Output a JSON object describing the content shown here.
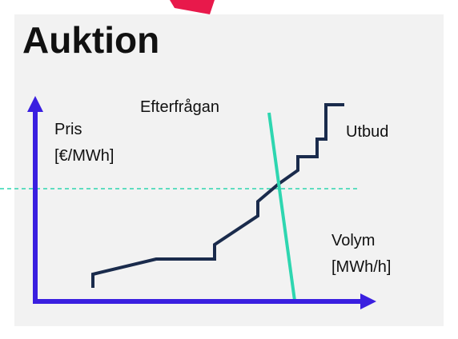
{
  "title": "Auktion",
  "y_axis": {
    "label": "Pris",
    "unit": "[€/MWh]"
  },
  "x_axis": {
    "label": "Volym",
    "unit": "[MWh/h]"
  },
  "demand_label": "Efterfrågan",
  "supply_label": "Utbud"
}
